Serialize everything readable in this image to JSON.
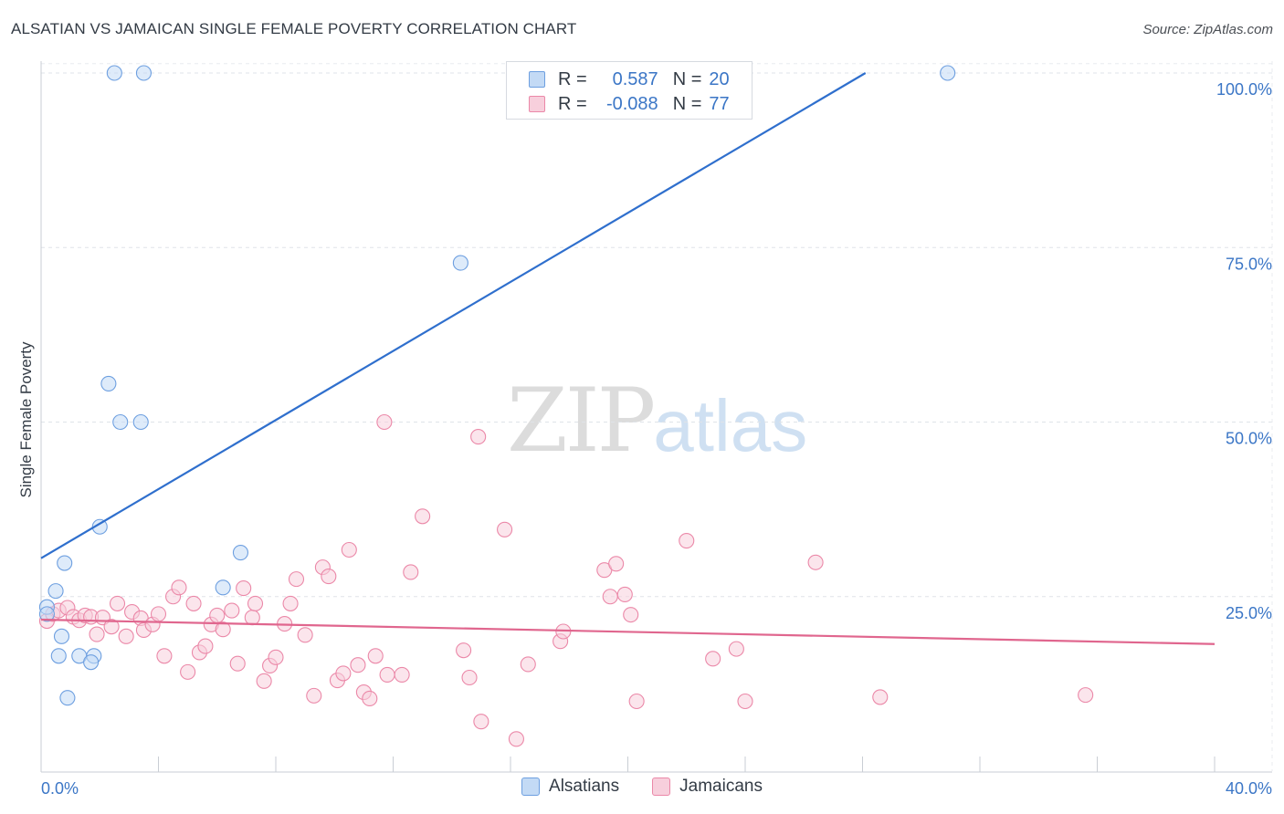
{
  "chart_data": {
    "type": "scatter",
    "title": "ALSATIAN VS JAMAICAN SINGLE FEMALE POVERTY CORRELATION CHART",
    "source": "Source: ZipAtlas.com",
    "xlabel": "",
    "ylabel": "Single Female Poverty",
    "xlim": [
      0,
      40
    ],
    "ylim": [
      0,
      102
    ],
    "x_tick_labels": [
      "0.0%",
      "40.0%"
    ],
    "y_ticks": [
      25,
      50,
      75,
      100
    ],
    "y_tick_labels": [
      "25.0%",
      "50.0%",
      "75.0%",
      "100.0%"
    ],
    "grid": true,
    "legend": {
      "position": "top-center",
      "r_label": "R =",
      "n_label": "N =",
      "entries": [
        {
          "name": "Alsatians",
          "r": "0.587",
          "n": "20"
        },
        {
          "name": "Jamaicans",
          "r": "-0.088",
          "n": "77"
        }
      ]
    },
    "watermark": {
      "zip": "ZIP",
      "atlas": "atlas"
    },
    "series": [
      {
        "name": "Alsatians",
        "color": "#6d9fe0",
        "fill": "#c3daf5",
        "line_color": "#2f6fcd",
        "trend": {
          "x": [
            0,
            28.1
          ],
          "y": [
            30.5,
            100
          ]
        },
        "points": [
          [
            2.5,
            100
          ],
          [
            3.5,
            100
          ],
          [
            30.9,
            100
          ],
          [
            14.3,
            72.8
          ],
          [
            2.3,
            55.5
          ],
          [
            2.7,
            50
          ],
          [
            3.4,
            50
          ],
          [
            2.0,
            35
          ],
          [
            0.8,
            29.8
          ],
          [
            6.8,
            31.3
          ],
          [
            6.2,
            26.3
          ],
          [
            0.5,
            25.8
          ],
          [
            0.2,
            23.5
          ],
          [
            0.2,
            22.5
          ],
          [
            0.7,
            19.3
          ],
          [
            0.6,
            16.5
          ],
          [
            1.3,
            16.5
          ],
          [
            1.8,
            16.5
          ],
          [
            1.7,
            15.6
          ],
          [
            0.9,
            10.5
          ]
        ]
      },
      {
        "name": "Jamaicans",
        "color": "#eb88a8",
        "fill": "#f7cfdc",
        "line_color": "#e0668e",
        "trend": {
          "x": [
            0,
            40
          ],
          "y": [
            21.7,
            18.2
          ]
        },
        "points": [
          [
            0.2,
            21.5
          ],
          [
            0.4,
            22.5
          ],
          [
            0.6,
            23
          ],
          [
            0.9,
            23.4
          ],
          [
            1.1,
            22.1
          ],
          [
            1.3,
            21.6
          ],
          [
            1.5,
            22.3
          ],
          [
            1.7,
            22.1
          ],
          [
            1.9,
            19.6
          ],
          [
            2.1,
            22.0
          ],
          [
            2.4,
            20.7
          ],
          [
            2.6,
            24.0
          ],
          [
            2.9,
            19.3
          ],
          [
            3.1,
            22.8
          ],
          [
            3.4,
            21.9
          ],
          [
            3.5,
            20.2
          ],
          [
            3.8,
            21.0
          ],
          [
            4.0,
            22.5
          ],
          [
            4.2,
            16.5
          ],
          [
            4.5,
            25.0
          ],
          [
            4.7,
            26.3
          ],
          [
            5.0,
            14.2
          ],
          [
            5.2,
            24.0
          ],
          [
            5.4,
            17.0
          ],
          [
            5.6,
            17.9
          ],
          [
            5.8,
            21.0
          ],
          [
            6.0,
            22.3
          ],
          [
            6.2,
            20.3
          ],
          [
            6.5,
            23.0
          ],
          [
            6.7,
            15.4
          ],
          [
            6.9,
            26.2
          ],
          [
            7.2,
            22.0
          ],
          [
            7.3,
            24.0
          ],
          [
            7.6,
            12.9
          ],
          [
            7.8,
            15.1
          ],
          [
            8.0,
            16.3
          ],
          [
            8.3,
            21.1
          ],
          [
            8.5,
            24.0
          ],
          [
            8.7,
            27.5
          ],
          [
            9.0,
            19.5
          ],
          [
            9.3,
            10.8
          ],
          [
            9.6,
            29.2
          ],
          [
            9.8,
            27.9
          ],
          [
            10.1,
            13.0
          ],
          [
            10.3,
            14.0
          ],
          [
            10.5,
            31.7
          ],
          [
            10.8,
            15.2
          ],
          [
            11.0,
            11.3
          ],
          [
            11.2,
            10.4
          ],
          [
            11.4,
            16.5
          ],
          [
            11.7,
            50.0
          ],
          [
            11.8,
            13.8
          ],
          [
            12.3,
            13.8
          ],
          [
            12.6,
            28.5
          ],
          [
            13.0,
            36.5
          ],
          [
            14.4,
            17.3
          ],
          [
            14.6,
            13.4
          ],
          [
            14.9,
            47.9
          ],
          [
            15.0,
            7.1
          ],
          [
            15.8,
            34.6
          ],
          [
            16.2,
            4.6
          ],
          [
            16.6,
            15.3
          ],
          [
            17.7,
            18.6
          ],
          [
            17.8,
            20.0
          ],
          [
            19.2,
            28.8
          ],
          [
            19.4,
            25.0
          ],
          [
            19.6,
            29.7
          ],
          [
            19.9,
            25.3
          ],
          [
            20.1,
            22.4
          ],
          [
            20.3,
            10.0
          ],
          [
            22.0,
            33.0
          ],
          [
            22.9,
            16.1
          ],
          [
            23.7,
            17.5
          ],
          [
            24.0,
            10.0
          ],
          [
            26.4,
            29.9
          ],
          [
            28.6,
            10.6
          ],
          [
            35.6,
            10.9
          ]
        ]
      }
    ]
  }
}
